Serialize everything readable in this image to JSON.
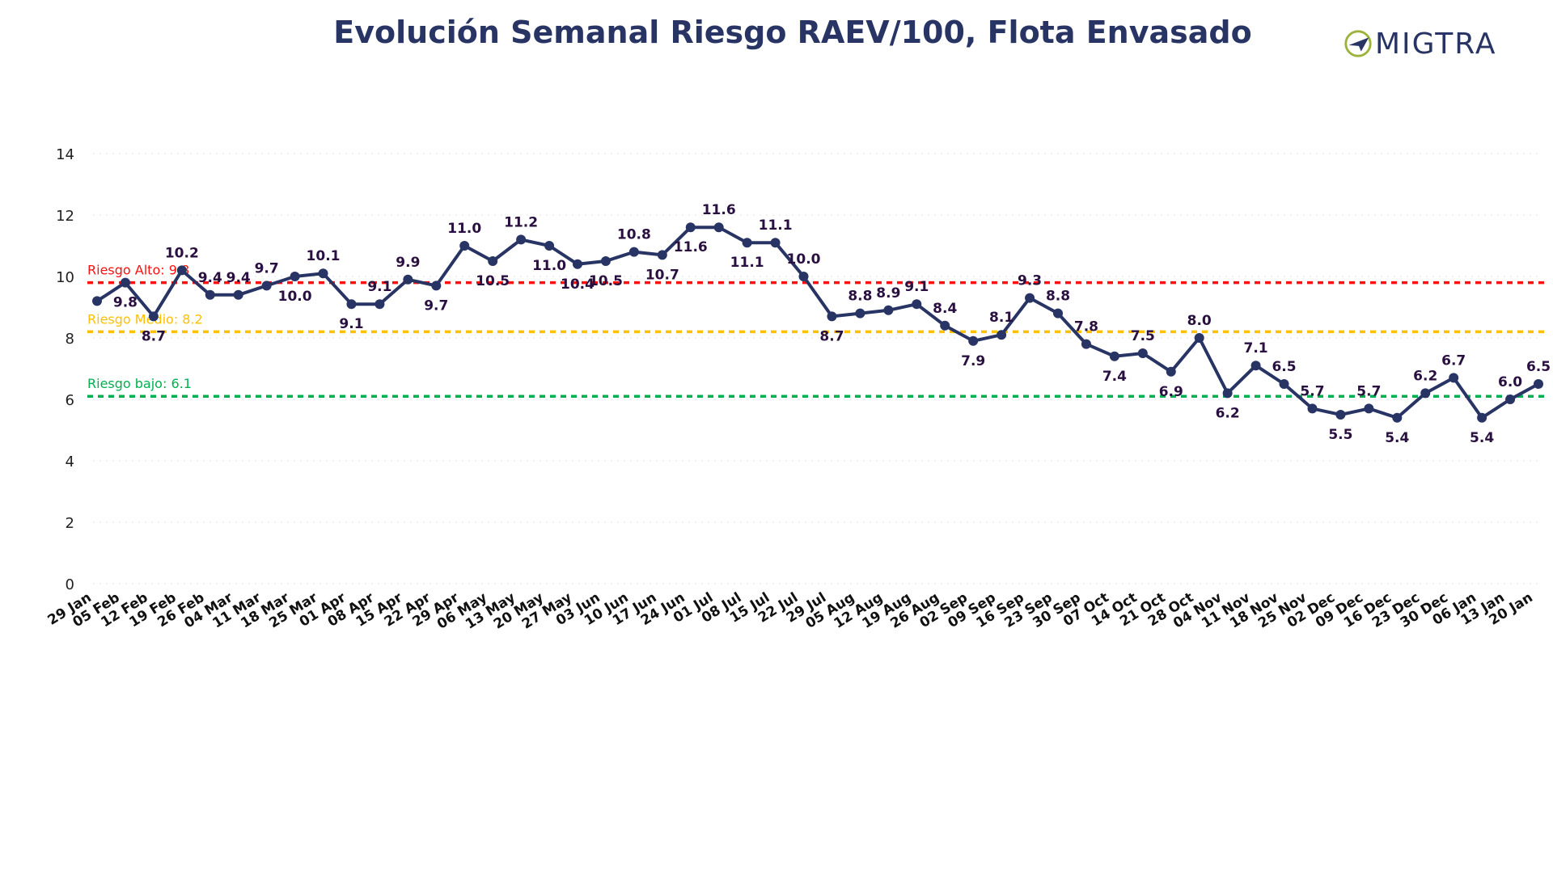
{
  "title": "Evolución Semanal Riesgo RAEV/100, Flota Envasado",
  "logo": {
    "text": "MIGTRA",
    "icon": "paper-plane-circle-icon",
    "colors": {
      "green": "#9BB33A",
      "navy": "#283464"
    }
  },
  "chart_data": {
    "type": "line",
    "title": "Evolución Semanal Riesgo RAEV/100, Flota Envasado",
    "xlabel": "",
    "ylabel": "",
    "ylim": [
      0,
      14
    ],
    "yticks": [
      0,
      2,
      4,
      6,
      8,
      10,
      12,
      14
    ],
    "categories": [
      "29 Jan",
      "05 Feb",
      "12 Feb",
      "19 Feb",
      "26 Feb",
      "04 Mar",
      "11 Mar",
      "18 Mar",
      "25 Mar",
      "01 Apr",
      "08 Apr",
      "15 Apr",
      "22 Apr",
      "29 Apr",
      "06 May",
      "13 May",
      "20 May",
      "27 May",
      "03 Jun",
      "10 Jun",
      "17 Jun",
      "24 Jun",
      "01 Jul",
      "08 Jul",
      "15 Jul",
      "22 Jul",
      "29 Jul",
      "05 Aug",
      "12 Aug",
      "19 Aug",
      "26 Aug",
      "02 Sep",
      "09 Sep",
      "16 Sep",
      "23 Sep",
      "30 Sep",
      "07 Oct",
      "14 Oct",
      "21 Oct",
      "28 Oct",
      "04 Nov",
      "11 Nov",
      "18 Nov",
      "25 Nov",
      "02 Dec",
      "09 Dec",
      "16 Dec",
      "23 Dec",
      "30 Dec",
      "06 Jan",
      "13 Jan",
      "20 Jan"
    ],
    "values": [
      9.2,
      9.8,
      8.7,
      10.2,
      9.4,
      9.4,
      9.7,
      10.0,
      10.1,
      9.1,
      9.1,
      9.9,
      9.7,
      11.0,
      10.5,
      11.2,
      11.0,
      10.4,
      10.5,
      10.8,
      10.7,
      11.6,
      11.6,
      11.1,
      11.1,
      10.0,
      8.7,
      8.8,
      8.9,
      9.1,
      8.4,
      7.9,
      8.1,
      9.3,
      8.8,
      7.8,
      7.4,
      7.5,
      6.9,
      8.0,
      6.2,
      7.1,
      6.5,
      5.7,
      5.5,
      5.7,
      5.4,
      6.2,
      6.7,
      5.4,
      6.0,
      6.5
    ],
    "data_labels": [
      "",
      "9.8",
      "8.7",
      "10.2",
      "9.4",
      "9.4",
      "9.7",
      "10.0",
      "10.1",
      "9.1",
      "9.1",
      "9.9",
      "9.7",
      "11.0",
      "10.5",
      "11.2",
      "11.0",
      "10.4",
      "10.5",
      "10.8",
      "10.7",
      "11.6",
      "11.6",
      "11.1",
      "11.1",
      "10.0",
      "8.7",
      "8.8",
      "8.9",
      "9.1",
      "8.4",
      "7.9",
      "8.1",
      "9.3",
      "8.8",
      "7.8",
      "7.4",
      "7.5",
      "6.9",
      "8.0",
      "6.2",
      "7.1",
      "6.5",
      "5.7",
      "5.5",
      "5.7",
      "5.4",
      "6.2",
      "6.7",
      "5.4",
      "6.0",
      "6.5"
    ],
    "label_positions": [
      "",
      "below",
      "below",
      "above",
      "above",
      "above",
      "above",
      "below",
      "above",
      "below",
      "above",
      "above",
      "below",
      "above",
      "below",
      "above",
      "below",
      "below",
      "below",
      "above",
      "below",
      "below",
      "above",
      "below",
      "above",
      "above",
      "below",
      "above",
      "above",
      "above",
      "above",
      "below",
      "above",
      "above",
      "above",
      "above",
      "below",
      "above",
      "below",
      "above",
      "below",
      "above",
      "above",
      "above",
      "below",
      "above",
      "below",
      "above",
      "above",
      "below",
      "above",
      "above"
    ],
    "series_color": "#283464",
    "reference_lines": [
      {
        "label": "Riesgo Alto: 9.8",
        "value": 9.8,
        "color": "#FF1010"
      },
      {
        "label": "Riesgo Medio: 8.2",
        "value": 8.2,
        "color": "#FFC000"
      },
      {
        "label": "Riesgo bajo: 6.1",
        "value": 6.1,
        "color": "#00B050"
      }
    ],
    "grid": false,
    "legend": "none"
  }
}
